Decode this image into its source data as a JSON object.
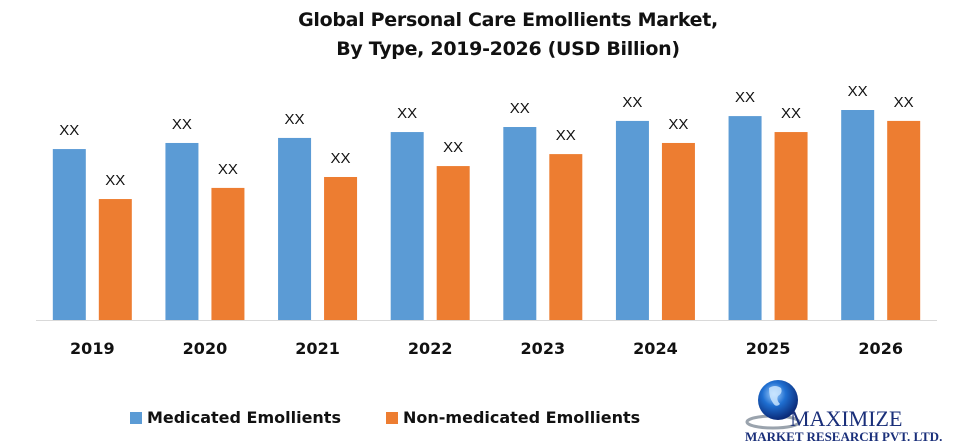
{
  "chart_data": {
    "type": "bar",
    "title": "Global Personal Care Emollients Market,\nBy Type, 2019-2026 (USD Billion)",
    "title_lines": [
      "Global Personal Care Emollients Market,",
      "By Type, 2019-2026 (USD Billion)"
    ],
    "xlabel": "",
    "ylabel": "",
    "categories": [
      "2019",
      "2020",
      "2021",
      "2022",
      "2023",
      "2024",
      "2025",
      "2026"
    ],
    "series": [
      {
        "name": "Medicated Emollients",
        "color": "#5B9BD5",
        "values": [
          81.4,
          84.3,
          86.7,
          89.5,
          91.9,
          94.8,
          97.1,
          100
        ],
        "data_labels": [
          "XX",
          "XX",
          "XX",
          "XX",
          "XX",
          "XX",
          "XX",
          "XX"
        ]
      },
      {
        "name": "Non-medicated Emollients",
        "color": "#ED7D31",
        "values": [
          57.6,
          62.9,
          68.1,
          73.3,
          79.0,
          84.3,
          89.5,
          94.8
        ],
        "data_labels": [
          "XX",
          "XX",
          "XX",
          "XX",
          "XX",
          "XX",
          "XX",
          "XX"
        ]
      }
    ],
    "ylim": [
      0,
      100
    ],
    "value_note": "Values shown only as placeholder 'XX'; relative bar heights estimated as index (max = 100)",
    "grid": false,
    "y_axis_visible": false,
    "legend_position": "bottom"
  },
  "legend": {
    "items": [
      {
        "label": "Medicated Emollients",
        "color": "#5B9BD5"
      },
      {
        "label": "Non-medicated Emollients",
        "color": "#ED7D31"
      }
    ]
  },
  "logo": {
    "line1": "MAXIMIZE",
    "line2": "MARKET RESEARCH PVT. LTD."
  }
}
